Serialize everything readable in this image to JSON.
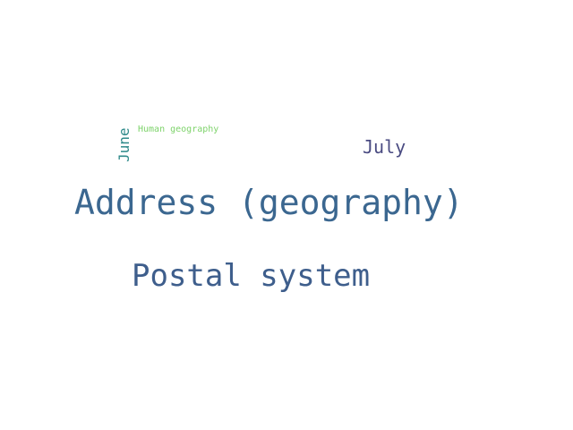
{
  "word_cloud": {
    "words": [
      {
        "id": "address",
        "text": "Address (geography)",
        "color": "#3b6790"
      },
      {
        "id": "postal",
        "text": "Postal system",
        "color": "#3e5e8c"
      },
      {
        "id": "july",
        "text": "July",
        "color": "#4a4b82"
      },
      {
        "id": "human",
        "text": "Human geography",
        "color": "#7ed36b"
      },
      {
        "id": "june",
        "text": "June",
        "color": "#2f8a8a"
      }
    ]
  }
}
